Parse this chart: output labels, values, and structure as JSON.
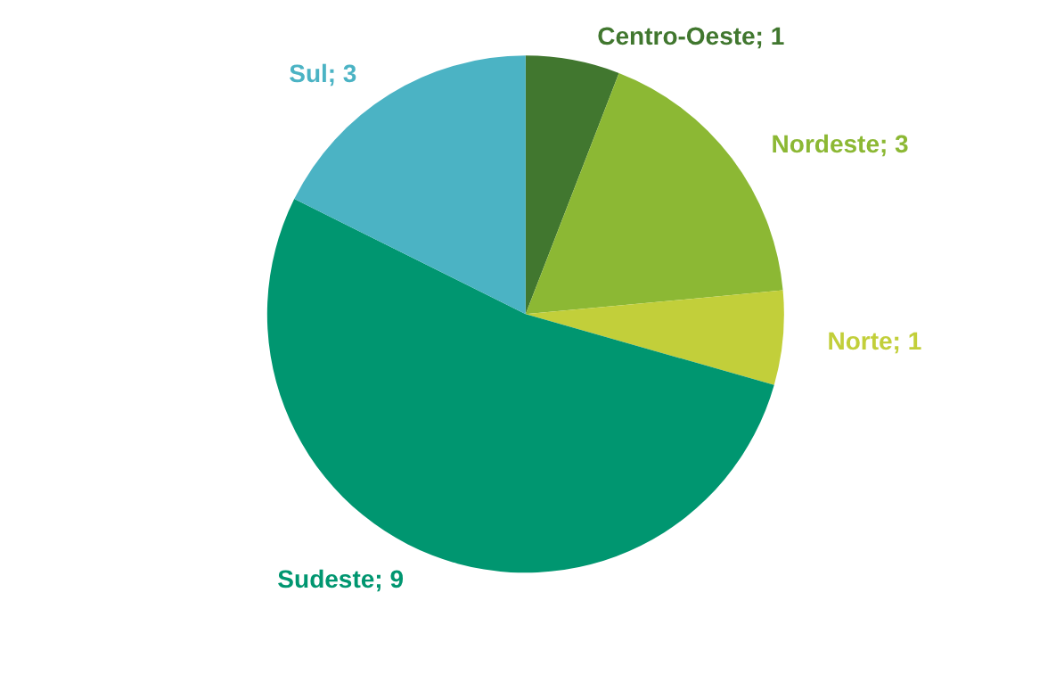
{
  "chart_data": {
    "type": "pie",
    "categories": [
      "Centro-Oeste",
      "Nordeste",
      "Norte",
      "Sudeste",
      "Sul"
    ],
    "values": [
      1,
      3,
      1,
      9,
      3
    ],
    "value_labels": [
      "; 1",
      "; 3",
      "; 1",
      "; 9",
      "; 3"
    ],
    "colors": [
      "#41772f",
      "#8cb834",
      "#c2cf3a",
      "#009670",
      "#4bb3c4"
    ],
    "legend": false
  }
}
